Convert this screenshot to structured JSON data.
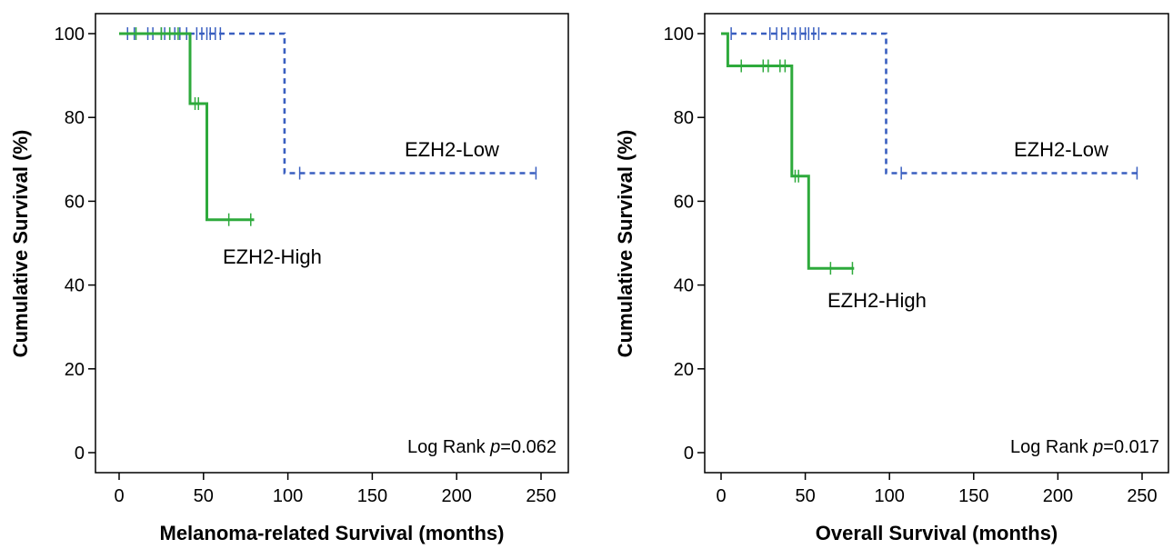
{
  "colors": {
    "low": "#3a5fc0",
    "high": "#2eaa3c",
    "axis": "#000000"
  },
  "chart_data": [
    {
      "type": "line",
      "title": "",
      "xlabel": "Melanoma-related Survival (months)",
      "ylabel": "Cumulative Survival (%)",
      "xlim": [
        0,
        250
      ],
      "ylim": [
        0,
        100
      ],
      "xticks": [
        "0",
        "50",
        "100",
        "150",
        "200",
        "250"
      ],
      "yticks": [
        "0",
        "20",
        "40",
        "60",
        "80",
        "100"
      ],
      "annotation": {
        "prefix": "Log Rank ",
        "p_symbol": "p",
        "value": "=0.062"
      },
      "series": [
        {
          "name": "EZH2-Low",
          "style": "dashed",
          "color": "#3a5fc0",
          "steps": [
            [
              0,
              100
            ],
            [
              98,
              100
            ],
            [
              98,
              66.7
            ],
            [
              248,
              66.7
            ]
          ],
          "censored": [
            [
              5,
              100
            ],
            [
              9,
              100
            ],
            [
              17,
              100
            ],
            [
              20,
              100
            ],
            [
              25,
              100
            ],
            [
              27,
              100
            ],
            [
              30,
              100
            ],
            [
              33,
              100
            ],
            [
              36,
              100
            ],
            [
              40,
              100
            ],
            [
              46,
              100
            ],
            [
              49,
              100
            ],
            [
              52,
              100
            ],
            [
              54,
              100
            ],
            [
              57,
              100
            ],
            [
              60,
              100
            ],
            [
              107,
              66.7
            ],
            [
              247,
              66.7
            ]
          ]
        },
        {
          "name": "EZH2-High",
          "style": "solid",
          "color": "#2eaa3c",
          "steps": [
            [
              0,
              100
            ],
            [
              42,
              100
            ],
            [
              42,
              83.3
            ],
            [
              52,
              83.3
            ],
            [
              52,
              55.6
            ],
            [
              80,
              55.6
            ]
          ],
          "censored": [
            [
              10,
              100
            ],
            [
              25,
              100
            ],
            [
              30,
              100
            ],
            [
              35,
              100
            ],
            [
              45,
              83.3
            ],
            [
              47,
              83.3
            ],
            [
              65,
              55.6
            ],
            [
              78,
              55.6
            ]
          ]
        }
      ]
    },
    {
      "type": "line",
      "title": "",
      "xlabel": "Overall Survival (months)",
      "ylabel": "Cumulative Survival (%)",
      "xlim": [
        0,
        250
      ],
      "ylim": [
        0,
        100
      ],
      "xticks": [
        "0",
        "50",
        "100",
        "150",
        "200",
        "250"
      ],
      "yticks": [
        "0",
        "20",
        "40",
        "60",
        "80",
        "100"
      ],
      "annotation": {
        "prefix": "Log Rank ",
        "p_symbol": "p",
        "value": "=0.017"
      },
      "series": [
        {
          "name": "EZH2-Low",
          "style": "dashed",
          "color": "#3a5fc0",
          "steps": [
            [
              0,
              100
            ],
            [
              98,
              100
            ],
            [
              98,
              66.7
            ],
            [
              248,
              66.7
            ]
          ],
          "censored": [
            [
              6,
              100
            ],
            [
              29,
              100
            ],
            [
              33,
              100
            ],
            [
              36,
              100
            ],
            [
              40,
              100
            ],
            [
              44,
              100
            ],
            [
              47,
              100
            ],
            [
              50,
              100
            ],
            [
              52,
              100
            ],
            [
              55,
              100
            ],
            [
              58,
              100
            ],
            [
              107,
              66.7
            ],
            [
              247,
              66.7
            ]
          ]
        },
        {
          "name": "EZH2-High",
          "style": "solid",
          "color": "#2eaa3c",
          "steps": [
            [
              0,
              100
            ],
            [
              4,
              100
            ],
            [
              4,
              92.3
            ],
            [
              42,
              92.3
            ],
            [
              42,
              66
            ],
            [
              52,
              66
            ],
            [
              52,
              44
            ],
            [
              79,
              44
            ]
          ],
          "censored": [
            [
              12,
              92.3
            ],
            [
              25,
              92.3
            ],
            [
              28,
              92.3
            ],
            [
              35,
              92.3
            ],
            [
              38,
              92.3
            ],
            [
              44,
              66
            ],
            [
              46,
              66
            ],
            [
              65,
              44
            ],
            [
              78,
              44
            ]
          ]
        }
      ]
    }
  ],
  "labels": [
    {
      "low": "EZH2-Low",
      "high": "EZH2-High"
    },
    {
      "low": "EZH2-Low",
      "high": "EZH2-High"
    }
  ]
}
